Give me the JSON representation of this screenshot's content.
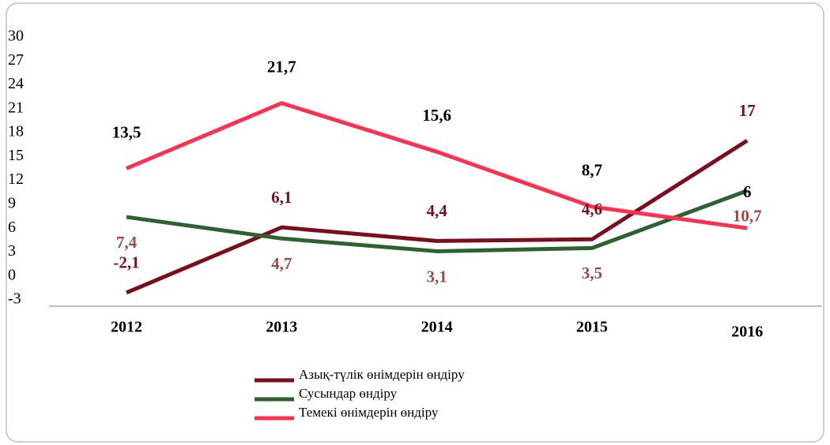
{
  "chart_data": {
    "type": "line",
    "categories": [
      "2012",
      "2013",
      "2014",
      "2015",
      "2016"
    ],
    "series": [
      {
        "name": "Азық-түлік өнімдерін өндіру",
        "color": "#7b0e1d",
        "label_color": "#7b0e1d",
        "values": [
          -2.1,
          6.1,
          4.4,
          4.6,
          17
        ],
        "value_labels": [
          "-2,1",
          "6,1",
          "4,4",
          "4,6",
          "17"
        ]
      },
      {
        "name": "Сусындар өндіру",
        "color": "#2e6130",
        "label_color": "#9e4a44",
        "values": [
          7.4,
          4.7,
          3.1,
          3.5,
          10.7
        ],
        "value_labels": [
          "7,4",
          "4,7",
          "3,1",
          "3,5",
          "10,7"
        ]
      },
      {
        "name": "Темекі өнімдерін өндіру",
        "color": "#ff2f4f",
        "label_color": "#000000",
        "values": [
          13.5,
          21.7,
          15.6,
          8.7,
          6
        ],
        "value_labels": [
          "13,5",
          "21,7",
          "15,6",
          "8,7",
          "6"
        ]
      }
    ],
    "ylim": [
      -3,
      30
    ],
    "yticks": [
      -3,
      0,
      3,
      6,
      9,
      12,
      15,
      18,
      21,
      24,
      27,
      30
    ]
  }
}
